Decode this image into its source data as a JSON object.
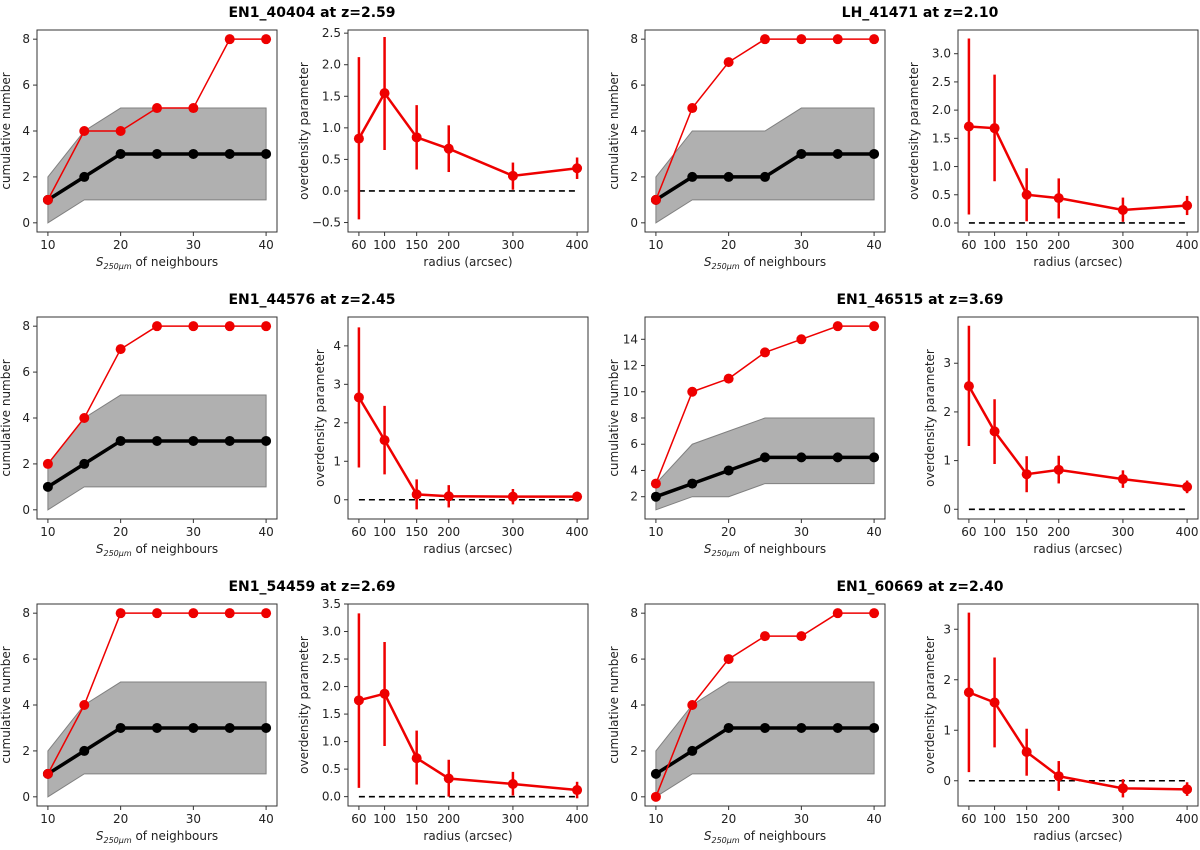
{
  "chart_data": [
    {
      "title": "EN1_40404 at z=2.59",
      "cumulative": {
        "type": "line",
        "xlabel_prefix": "S",
        "xlabel_sub": "250μm",
        "xlabel_suffix": " of neighbours",
        "ylabel": "cumulative number",
        "x": [
          10,
          15,
          20,
          25,
          30,
          35,
          40
        ],
        "xticks": [
          10,
          20,
          30,
          40
        ],
        "yticks": [
          0,
          2,
          4,
          6,
          8
        ],
        "ylim": [
          -0.4,
          8.4
        ],
        "observed": [
          1,
          4,
          4,
          5,
          5,
          8,
          8
        ],
        "expected": [
          1,
          2,
          3,
          3,
          3,
          3,
          3
        ],
        "band_low": [
          0,
          1,
          1,
          1,
          1,
          1,
          1
        ],
        "band_high": [
          2,
          4,
          5,
          5,
          5,
          5,
          5
        ]
      },
      "overdensity": {
        "type": "line",
        "xlabel": "radius (arcsec)",
        "ylabel": "overdensity parameter",
        "x": [
          60,
          100,
          150,
          200,
          300,
          400
        ],
        "xticks": [
          60,
          100,
          150,
          200,
          300,
          400
        ],
        "yticks": [
          -0.5,
          0.0,
          0.5,
          1.0,
          1.5,
          2.0,
          2.5
        ],
        "ytick_labels": [
          "−0.5",
          "0.0",
          "0.5",
          "1.0",
          "1.5",
          "2.0",
          "2.5"
        ],
        "ylim": [
          -0.65,
          2.55
        ],
        "values": [
          0.83,
          1.55,
          0.85,
          0.67,
          0.24,
          0.36
        ],
        "err_low": [
          -0.45,
          0.65,
          0.34,
          0.3,
          0.02,
          0.19
        ],
        "err_high": [
          2.12,
          2.44,
          1.36,
          1.04,
          0.45,
          0.53
        ],
        "reference_line": 0
      }
    },
    {
      "title": "LH_41471 at z=2.10",
      "cumulative": {
        "type": "line",
        "xlabel_prefix": "S",
        "xlabel_sub": "250μm",
        "xlabel_suffix": " of neighbours",
        "ylabel": "cumulative number",
        "x": [
          10,
          15,
          20,
          25,
          30,
          35,
          40
        ],
        "xticks": [
          10,
          20,
          30,
          40
        ],
        "yticks": [
          0,
          2,
          4,
          6,
          8
        ],
        "ylim": [
          -0.4,
          8.4
        ],
        "observed": [
          1,
          5,
          7,
          8,
          8,
          8,
          8
        ],
        "expected": [
          1,
          2,
          2,
          2,
          3,
          3,
          3
        ],
        "band_low": [
          0,
          1,
          1,
          1,
          1,
          1,
          1
        ],
        "band_high": [
          2,
          4,
          4,
          4,
          5,
          5,
          5
        ]
      },
      "overdensity": {
        "type": "line",
        "xlabel": "radius (arcsec)",
        "ylabel": "overdensity parameter",
        "x": [
          60,
          100,
          150,
          200,
          300,
          400
        ],
        "xticks": [
          60,
          100,
          150,
          200,
          300,
          400
        ],
        "yticks": [
          0.0,
          0.5,
          1.0,
          1.5,
          2.0,
          2.5,
          3.0
        ],
        "ytick_labels": [
          "0.0",
          "0.5",
          "1.0",
          "1.5",
          "2.0",
          "2.5",
          "3.0"
        ],
        "ylim": [
          -0.16,
          3.42
        ],
        "values": [
          1.71,
          1.68,
          0.5,
          0.44,
          0.23,
          0.31
        ],
        "err_low": [
          0.15,
          0.74,
          0.03,
          0.08,
          0.02,
          0.14
        ],
        "err_high": [
          3.27,
          2.63,
          0.97,
          0.79,
          0.45,
          0.48
        ],
        "reference_line": 0
      }
    },
    {
      "title": "EN1_44576 at z=2.45",
      "cumulative": {
        "type": "line",
        "xlabel_prefix": "S",
        "xlabel_sub": "250μm",
        "xlabel_suffix": " of neighbours",
        "ylabel": "cumulative number",
        "x": [
          10,
          15,
          20,
          25,
          30,
          35,
          40
        ],
        "xticks": [
          10,
          20,
          30,
          40
        ],
        "yticks": [
          0,
          2,
          4,
          6,
          8
        ],
        "ylim": [
          -0.4,
          8.4
        ],
        "observed": [
          2,
          4,
          7,
          8,
          8,
          8,
          8
        ],
        "expected": [
          1,
          2,
          3,
          3,
          3,
          3,
          3
        ],
        "band_low": [
          0,
          1,
          1,
          1,
          1,
          1,
          1
        ],
        "band_high": [
          2,
          4,
          5,
          5,
          5,
          5,
          5
        ]
      },
      "overdensity": {
        "type": "line",
        "xlabel": "radius (arcsec)",
        "ylabel": "overdensity parameter",
        "x": [
          60,
          100,
          150,
          200,
          300,
          400
        ],
        "xticks": [
          60,
          100,
          150,
          200,
          300,
          400
        ],
        "yticks": [
          0,
          1,
          2,
          3,
          4
        ],
        "ytick_labels": [
          "0",
          "1",
          "2",
          "3",
          "4"
        ],
        "ylim": [
          -0.5,
          4.75
        ],
        "values": [
          2.66,
          1.55,
          0.14,
          0.09,
          0.08,
          0.08
        ],
        "err_low": [
          0.84,
          0.66,
          -0.25,
          -0.2,
          -0.12,
          -0.05
        ],
        "err_high": [
          4.48,
          2.44,
          0.53,
          0.38,
          0.28,
          0.21
        ],
        "reference_line": 0
      }
    },
    {
      "title": "EN1_46515 at z=3.69",
      "cumulative": {
        "type": "line",
        "xlabel_prefix": "S",
        "xlabel_sub": "250μm",
        "xlabel_suffix": " of neighbours",
        "ylabel": "cumulative number",
        "x": [
          10,
          15,
          20,
          25,
          30,
          35,
          40
        ],
        "xticks": [
          10,
          20,
          30,
          40
        ],
        "yticks": [
          2,
          4,
          6,
          8,
          10,
          12,
          14
        ],
        "ylim": [
          0.3,
          15.7
        ],
        "observed": [
          3,
          10,
          11,
          13,
          14,
          15,
          15
        ],
        "expected": [
          2,
          3,
          4,
          5,
          5,
          5,
          5
        ],
        "band_low": [
          1,
          2,
          2,
          3,
          3,
          3,
          3
        ],
        "band_high": [
          3,
          6,
          7,
          8,
          8,
          8,
          8
        ]
      },
      "overdensity": {
        "type": "line",
        "xlabel": "radius (arcsec)",
        "ylabel": "overdensity parameter",
        "x": [
          60,
          100,
          150,
          200,
          300,
          400
        ],
        "xticks": [
          60,
          100,
          150,
          200,
          300,
          400
        ],
        "yticks": [
          0,
          1,
          2,
          3
        ],
        "ytick_labels": [
          "0",
          "1",
          "2",
          "3"
        ],
        "ylim": [
          -0.2,
          3.95
        ],
        "values": [
          2.53,
          1.6,
          0.72,
          0.81,
          0.62,
          0.46
        ],
        "err_low": [
          1.3,
          0.93,
          0.35,
          0.53,
          0.44,
          0.33
        ],
        "err_high": [
          3.77,
          2.26,
          1.09,
          1.1,
          0.8,
          0.59
        ],
        "reference_line": 0
      }
    },
    {
      "title": "EN1_54459 at z=2.69",
      "cumulative": {
        "type": "line",
        "xlabel_prefix": "S",
        "xlabel_sub": "250μm",
        "xlabel_suffix": " of neighbours",
        "ylabel": "cumulative number",
        "x": [
          10,
          15,
          20,
          25,
          30,
          35,
          40
        ],
        "xticks": [
          10,
          20,
          30,
          40
        ],
        "yticks": [
          0,
          2,
          4,
          6,
          8
        ],
        "ylim": [
          -0.4,
          8.4
        ],
        "observed": [
          1,
          4,
          8,
          8,
          8,
          8,
          8
        ],
        "expected": [
          1,
          2,
          3,
          3,
          3,
          3,
          3
        ],
        "band_low": [
          0,
          1,
          1,
          1,
          1,
          1,
          1
        ],
        "band_high": [
          2,
          4,
          5,
          5,
          5,
          5,
          5
        ]
      },
      "overdensity": {
        "type": "line",
        "xlabel": "radius (arcsec)",
        "ylabel": "overdensity parameter",
        "x": [
          60,
          100,
          150,
          200,
          300,
          400
        ],
        "xticks": [
          60,
          100,
          150,
          200,
          300,
          400
        ],
        "yticks": [
          0.0,
          0.5,
          1.0,
          1.5,
          2.0,
          2.5,
          3.0,
          3.5
        ],
        "ytick_labels": [
          "0.0",
          "0.5",
          "1.0",
          "1.5",
          "2.0",
          "2.5",
          "3.0",
          "3.5"
        ],
        "ylim": [
          -0.17,
          3.5
        ],
        "values": [
          1.75,
          1.87,
          0.7,
          0.33,
          0.23,
          0.12
        ],
        "err_low": [
          0.16,
          0.92,
          0.22,
          0.0,
          0.02,
          -0.03
        ],
        "err_high": [
          3.33,
          2.81,
          1.2,
          0.67,
          0.45,
          0.27
        ],
        "reference_line": 0
      }
    },
    {
      "title": "EN1_60669 at z=2.40",
      "cumulative": {
        "type": "line",
        "xlabel_prefix": "S",
        "xlabel_sub": "250μm",
        "xlabel_suffix": " of neighbours",
        "ylabel": "cumulative number",
        "x": [
          10,
          15,
          20,
          25,
          30,
          35,
          40
        ],
        "xticks": [
          10,
          20,
          30,
          40
        ],
        "yticks": [
          0,
          2,
          4,
          6,
          8
        ],
        "ylim": [
          -0.4,
          8.4
        ],
        "observed": [
          0,
          4,
          6,
          7,
          7,
          8,
          8
        ],
        "expected": [
          1,
          2,
          3,
          3,
          3,
          3,
          3
        ],
        "band_low": [
          0,
          1,
          1,
          1,
          1,
          1,
          1
        ],
        "band_high": [
          2,
          4,
          5,
          5,
          5,
          5,
          5
        ]
      },
      "overdensity": {
        "type": "line",
        "xlabel": "radius (arcsec)",
        "ylabel": "overdensity parameter",
        "x": [
          60,
          100,
          150,
          200,
          300,
          400
        ],
        "xticks": [
          60,
          100,
          150,
          200,
          300,
          400
        ],
        "yticks": [
          0,
          1,
          2,
          3
        ],
        "ytick_labels": [
          "0",
          "1",
          "2",
          "3"
        ],
        "ylim": [
          -0.5,
          3.5
        ],
        "values": [
          1.75,
          1.55,
          0.57,
          0.09,
          -0.15,
          -0.17
        ],
        "err_low": [
          0.17,
          0.66,
          0.1,
          -0.2,
          -0.33,
          -0.3
        ],
        "err_high": [
          3.33,
          2.44,
          1.03,
          0.39,
          0.03,
          -0.03
        ],
        "reference_line": 0
      }
    }
  ],
  "colors": {
    "observed": "#ee0000",
    "expected": "#000000",
    "band": "#b0b0b0",
    "band_edge": "#808080",
    "reference": "#000000"
  }
}
